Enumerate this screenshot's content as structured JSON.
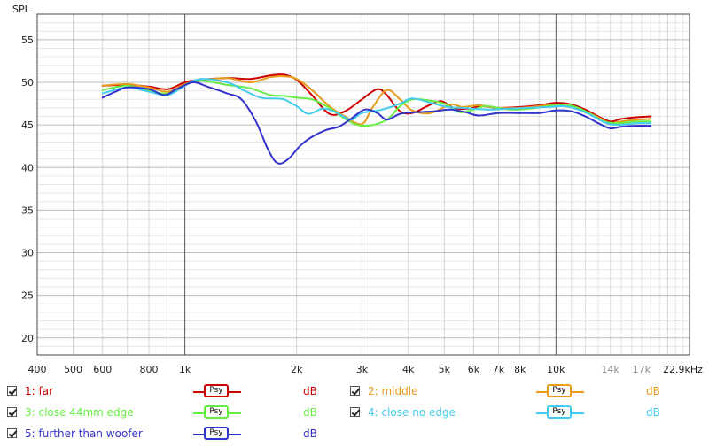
{
  "chart_data": {
    "type": "line",
    "ylabel": "SPL",
    "x_unit_label": "22.9kHz",
    "x_scale": "log",
    "xlim": [
      400,
      22900
    ],
    "ylim": [
      18,
      58
    ],
    "grid": true,
    "y_ticks": [
      20,
      25,
      30,
      35,
      40,
      45,
      50,
      55
    ],
    "x_ticks": [
      {
        "v": 400,
        "label": "400",
        "grey": false
      },
      {
        "v": 500,
        "label": "500",
        "grey": false
      },
      {
        "v": 600,
        "label": "600",
        "grey": false
      },
      {
        "v": 800,
        "label": "800",
        "grey": false
      },
      {
        "v": 1000,
        "label": "1k",
        "grey": false
      },
      {
        "v": 2000,
        "label": "2k",
        "grey": false
      },
      {
        "v": 3000,
        "label": "3k",
        "grey": false
      },
      {
        "v": 4000,
        "label": "4k",
        "grey": false
      },
      {
        "v": 5000,
        "label": "5k",
        "grey": false
      },
      {
        "v": 6000,
        "label": "6k",
        "grey": false
      },
      {
        "v": 7000,
        "label": "7k",
        "grey": false
      },
      {
        "v": 8000,
        "label": "8k",
        "grey": false
      },
      {
        "v": 10000,
        "label": "10k",
        "grey": false
      },
      {
        "v": 14000,
        "label": "14k",
        "grey": true
      },
      {
        "v": 17000,
        "label": "17k",
        "grey": true
      }
    ],
    "series": [
      {
        "name": "1: far",
        "color": "#cc0000",
        "points": [
          [
            600,
            49.6
          ],
          [
            700,
            49.7
          ],
          [
            800,
            49.5
          ],
          [
            900,
            49.2
          ],
          [
            1000,
            50.0
          ],
          [
            1100,
            50.3
          ],
          [
            1300,
            50.5
          ],
          [
            1500,
            50.4
          ],
          [
            1700,
            50.8
          ],
          [
            1850,
            50.9
          ],
          [
            2000,
            50.3
          ],
          [
            2200,
            48.5
          ],
          [
            2450,
            46.3
          ],
          [
            2700,
            46.6
          ],
          [
            3000,
            48.0
          ],
          [
            3300,
            49.2
          ],
          [
            3500,
            48.5
          ],
          [
            3800,
            46.6
          ],
          [
            4100,
            46.4
          ],
          [
            4500,
            47.2
          ],
          [
            4900,
            47.8
          ],
          [
            5300,
            47.0
          ],
          [
            5800,
            46.9
          ],
          [
            6300,
            47.2
          ],
          [
            7000,
            47.0
          ],
          [
            8000,
            47.1
          ],
          [
            9000,
            47.3
          ],
          [
            10000,
            47.6
          ],
          [
            11000,
            47.4
          ],
          [
            12000,
            46.8
          ],
          [
            13000,
            46.0
          ],
          [
            14000,
            45.4
          ],
          [
            15000,
            45.7
          ],
          [
            16500,
            45.9
          ],
          [
            18000,
            46.0
          ]
        ]
      },
      {
        "name": "2: middle",
        "color": "#e89a1a",
        "points": [
          [
            600,
            49.6
          ],
          [
            700,
            49.8
          ],
          [
            800,
            49.4
          ],
          [
            900,
            48.9
          ],
          [
            1000,
            49.8
          ],
          [
            1100,
            50.2
          ],
          [
            1300,
            50.5
          ],
          [
            1500,
            50.0
          ],
          [
            1700,
            50.6
          ],
          [
            1850,
            50.7
          ],
          [
            2000,
            50.4
          ],
          [
            2200,
            49.1
          ],
          [
            2450,
            47.2
          ],
          [
            2700,
            46.0
          ],
          [
            3000,
            45.1
          ],
          [
            3200,
            47.0
          ],
          [
            3500,
            49.1
          ],
          [
            3800,
            48.0
          ],
          [
            4100,
            46.7
          ],
          [
            4600,
            46.4
          ],
          [
            5200,
            47.4
          ],
          [
            5600,
            47.1
          ],
          [
            6200,
            47.3
          ],
          [
            7000,
            47.0
          ],
          [
            8000,
            47.0
          ],
          [
            9000,
            47.2
          ],
          [
            10000,
            47.4
          ],
          [
            11000,
            47.2
          ],
          [
            12000,
            46.6
          ],
          [
            13000,
            45.9
          ],
          [
            14000,
            45.2
          ],
          [
            15000,
            45.4
          ],
          [
            16500,
            45.6
          ],
          [
            18000,
            45.7
          ]
        ]
      },
      {
        "name": "3: close 44mm edge",
        "color": "#66ee44",
        "points": [
          [
            600,
            49.1
          ],
          [
            700,
            49.6
          ],
          [
            800,
            49.0
          ],
          [
            900,
            48.7
          ],
          [
            1000,
            49.7
          ],
          [
            1100,
            50.2
          ],
          [
            1300,
            49.7
          ],
          [
            1500,
            49.3
          ],
          [
            1700,
            48.5
          ],
          [
            1850,
            48.4
          ],
          [
            2000,
            48.2
          ],
          [
            2200,
            48.0
          ],
          [
            2450,
            47.0
          ],
          [
            2800,
            45.3
          ],
          [
            3100,
            44.9
          ],
          [
            3500,
            45.6
          ],
          [
            3800,
            47.2
          ],
          [
            4100,
            48.0
          ],
          [
            4500,
            47.9
          ],
          [
            5000,
            47.5
          ],
          [
            5500,
            46.5
          ],
          [
            6000,
            46.8
          ],
          [
            6500,
            47.2
          ],
          [
            7500,
            46.8
          ],
          [
            8500,
            46.9
          ],
          [
            9500,
            47.2
          ],
          [
            10500,
            47.4
          ],
          [
            11500,
            47.0
          ],
          [
            12500,
            46.2
          ],
          [
            13500,
            45.4
          ],
          [
            14500,
            45.2
          ],
          [
            15500,
            45.3
          ],
          [
            16500,
            45.4
          ],
          [
            18000,
            45.4
          ]
        ]
      },
      {
        "name": "4: close no edge",
        "color": "#44ccee",
        "points": [
          [
            600,
            48.7
          ],
          [
            700,
            49.4
          ],
          [
            800,
            48.9
          ],
          [
            900,
            48.5
          ],
          [
            1000,
            49.6
          ],
          [
            1100,
            50.4
          ],
          [
            1300,
            50.0
          ],
          [
            1450,
            49.0
          ],
          [
            1600,
            48.2
          ],
          [
            1750,
            48.1
          ],
          [
            1850,
            48.0
          ],
          [
            2000,
            47.2
          ],
          [
            2150,
            46.3
          ],
          [
            2350,
            46.9
          ],
          [
            2550,
            46.5
          ],
          [
            2800,
            45.6
          ],
          [
            3000,
            46.4
          ],
          [
            3400,
            46.8
          ],
          [
            3800,
            47.5
          ],
          [
            4100,
            48.1
          ],
          [
            4600,
            47.6
          ],
          [
            5100,
            47.1
          ],
          [
            5600,
            47.0
          ],
          [
            6500,
            46.8
          ],
          [
            7500,
            46.9
          ],
          [
            8500,
            47.0
          ],
          [
            9500,
            47.1
          ],
          [
            10500,
            47.2
          ],
          [
            11500,
            46.8
          ],
          [
            12500,
            46.1
          ],
          [
            13500,
            45.3
          ],
          [
            14500,
            45.0
          ],
          [
            15500,
            45.1
          ],
          [
            16500,
            45.2
          ],
          [
            18000,
            45.2
          ]
        ]
      },
      {
        "name": "5: further than woofer",
        "color": "#3333cc",
        "points": [
          [
            600,
            48.2
          ],
          [
            650,
            48.9
          ],
          [
            700,
            49.4
          ],
          [
            800,
            49.2
          ],
          [
            880,
            48.5
          ],
          [
            950,
            49.2
          ],
          [
            1050,
            50.0
          ],
          [
            1150,
            49.5
          ],
          [
            1300,
            48.7
          ],
          [
            1420,
            48.0
          ],
          [
            1550,
            45.5
          ],
          [
            1680,
            42.0
          ],
          [
            1780,
            40.5
          ],
          [
            1900,
            41.0
          ],
          [
            2050,
            42.6
          ],
          [
            2200,
            43.6
          ],
          [
            2400,
            44.4
          ],
          [
            2600,
            44.8
          ],
          [
            2800,
            45.7
          ],
          [
            3050,
            46.8
          ],
          [
            3300,
            46.4
          ],
          [
            3500,
            45.6
          ],
          [
            3800,
            46.3
          ],
          [
            4200,
            46.5
          ],
          [
            4700,
            46.6
          ],
          [
            5200,
            46.8
          ],
          [
            5700,
            46.5
          ],
          [
            6200,
            46.1
          ],
          [
            7000,
            46.4
          ],
          [
            8000,
            46.4
          ],
          [
            9000,
            46.4
          ],
          [
            10000,
            46.7
          ],
          [
            11000,
            46.6
          ],
          [
            12000,
            46.0
          ],
          [
            13000,
            45.2
          ],
          [
            14000,
            44.6
          ],
          [
            15000,
            44.8
          ],
          [
            16500,
            44.9
          ],
          [
            18000,
            44.9
          ]
        ]
      }
    ]
  },
  "legend": [
    {
      "label": "1: far",
      "color": "#cc0000",
      "psy": "Psy",
      "db": "dB"
    },
    {
      "label": "2: middle",
      "color": "#e89a1a",
      "psy": "Psy",
      "db": "dB"
    },
    {
      "label": "3: close 44mm edge",
      "color": "#66ee44",
      "psy": "Psy",
      "db": "dB"
    },
    {
      "label": "4: close no edge",
      "color": "#44ccee",
      "psy": "Psy",
      "db": "dB"
    },
    {
      "label": "5: further than woofer",
      "color": "#3333cc",
      "psy": "Psy",
      "db": "dB"
    }
  ]
}
